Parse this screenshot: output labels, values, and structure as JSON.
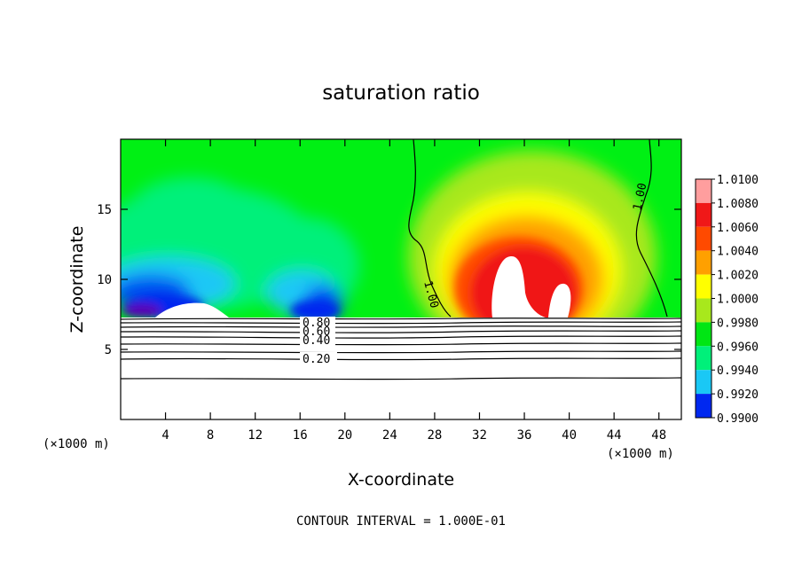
{
  "chart_data": {
    "type": "heatmap",
    "title": "saturation ratio",
    "xlabel": "X-coordinate",
    "ylabel": "Z-coordinate",
    "x_unit": "(×1000 m)",
    "y_unit": "(×1000 m)",
    "xlim": [
      0,
      50
    ],
    "ylim": [
      0,
      20
    ],
    "x_ticks": [
      "4",
      "8",
      "12",
      "16",
      "20",
      "24",
      "28",
      "32",
      "36",
      "40",
      "44",
      "48"
    ],
    "y_ticks": [
      "5",
      "10",
      "15"
    ],
    "colorbar": {
      "levels": [
        "1.0100",
        "1.0080",
        "1.0060",
        "1.0040",
        "1.0020",
        "1.0000",
        "0.9980",
        "0.9960",
        "0.9940",
        "0.9920",
        "0.9900"
      ],
      "colors": [
        "#ff9e9e",
        "#f01818",
        "#ff4a00",
        "#ffa000",
        "#ffff00",
        "#a8e81c",
        "#00e614",
        "#00f07a",
        "#1ac8f5",
        "#0028f0",
        "#5a00b4"
      ]
    },
    "contour_labels": [
      "1.00",
      "1.00",
      "0.80",
      "0.60",
      "0.40",
      "0.20"
    ],
    "contour_interval_text": "CONTOUR INTERVAL = 1.000E-01"
  }
}
